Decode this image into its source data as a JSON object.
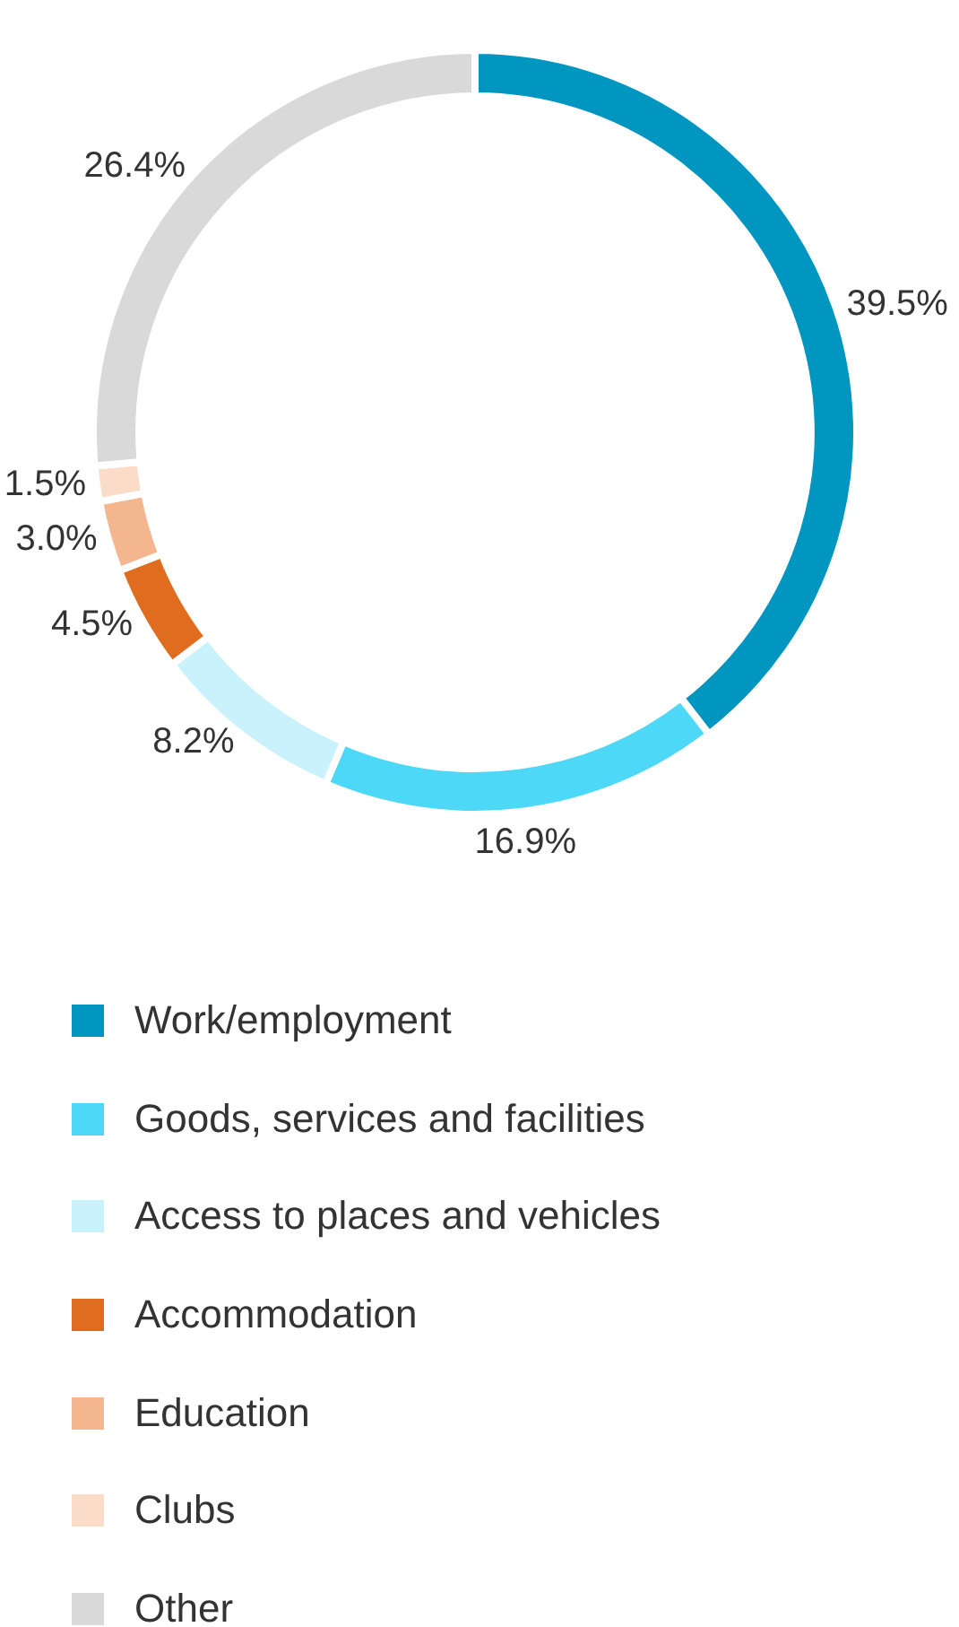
{
  "chart_data": {
    "type": "donut",
    "categories": [
      "Work/employment",
      "Goods, services and facilities",
      "Access to places and vehicles",
      "Accommodation",
      "Education",
      "Clubs",
      "Other"
    ],
    "values": [
      39.5,
      16.9,
      8.2,
      4.5,
      3.0,
      1.5,
      26.4
    ],
    "value_labels": [
      "39.5%",
      "16.9%",
      "8.2%",
      "4.5%",
      "3.0%",
      "1.5%",
      "26.4%"
    ],
    "colors": [
      "#0096c0",
      "#4dd8f7",
      "#c9f2fc",
      "#e06c1f",
      "#f3b68f",
      "#fadcc8",
      "#d9d9d9"
    ],
    "legend": "bottom"
  }
}
